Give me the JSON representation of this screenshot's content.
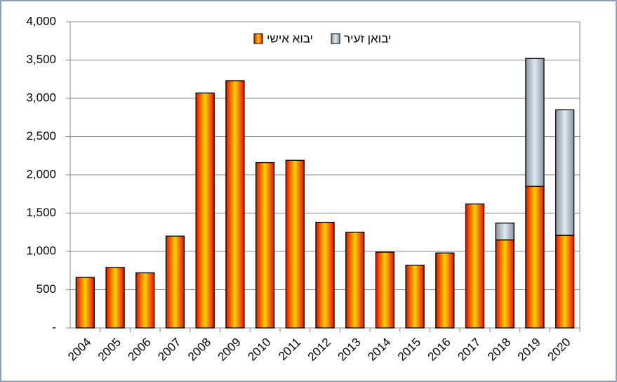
{
  "chart_data": {
    "type": "stacked_bar",
    "categories": [
      "2004",
      "2005",
      "2006",
      "2007",
      "2008",
      "2009",
      "2010",
      "2011",
      "2012",
      "2013",
      "2014",
      "2015",
      "2016",
      "2017",
      "2018",
      "2019",
      "2020"
    ],
    "series": [
      {
        "name": "יבוא אישי",
        "color": "#ff8c00",
        "values": [
          660,
          790,
          720,
          1200,
          3070,
          3230,
          2160,
          2190,
          1380,
          1250,
          990,
          820,
          980,
          1620,
          1150,
          1850,
          1210
        ]
      },
      {
        "name": "יבואן זעיר",
        "color": "#b4c6d8",
        "values": [
          null,
          null,
          null,
          null,
          null,
          null,
          null,
          null,
          null,
          null,
          null,
          null,
          null,
          null,
          220,
          1670,
          1640
        ]
      }
    ],
    "ylim": [
      0,
      4000
    ],
    "yticks": [
      {
        "value": 0,
        "label": "-"
      },
      500,
      {
        "value": 1000,
        "label": "1,000"
      },
      {
        "value": 1500,
        "label": "1,500"
      },
      {
        "value": 2000,
        "label": "2,000"
      },
      {
        "value": 2500,
        "label": "2,500"
      },
      {
        "value": 3000,
        "label": "3,000"
      },
      {
        "value": 3500,
        "label": "3,500"
      },
      {
        "value": 4000,
        "label": "4,000"
      }
    ],
    "grid": true,
    "legend": "top"
  }
}
